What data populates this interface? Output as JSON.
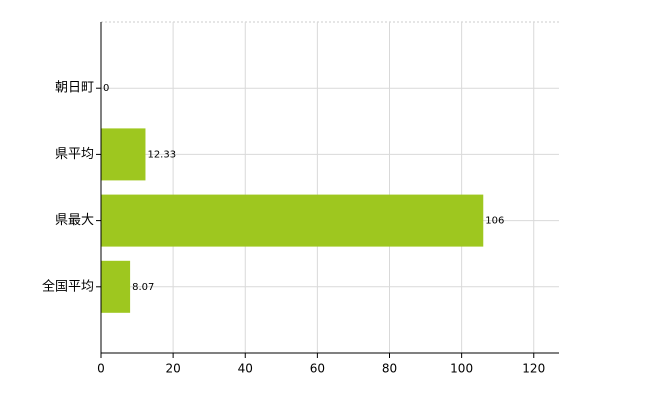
{
  "chart_data": {
    "type": "bar",
    "orientation": "horizontal",
    "categories": [
      "朝日町",
      "県平均",
      "県最大",
      "全国平均"
    ],
    "values": [
      0,
      12.33,
      106,
      8.07
    ],
    "color": "#9ec71f",
    "xlim": [
      0,
      127
    ],
    "xticks": [
      0,
      20,
      40,
      60,
      80,
      100,
      120
    ],
    "grid": true
  }
}
